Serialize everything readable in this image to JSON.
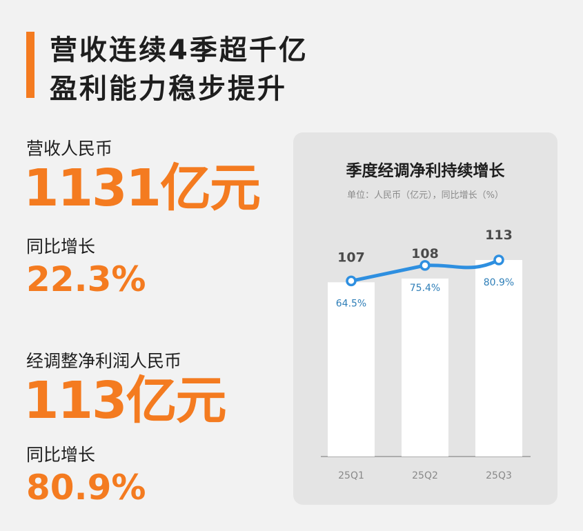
{
  "headline": {
    "line1": "营收连续4季超千亿",
    "line2": "盈利能力稳步提升"
  },
  "revenue": {
    "label": "营收人民币",
    "value": "1131亿元",
    "growth_label": "同比增长",
    "growth": "22.3%"
  },
  "profit": {
    "label": "经调整净利润人民币",
    "value": "113亿元",
    "growth_label": "同比增长",
    "growth": "80.9%"
  },
  "colors": {
    "accent": "#f47b20",
    "line": "#2e8fe0",
    "pct_text": "#2f7fb8",
    "bar": "#ffffff"
  },
  "chart_data": {
    "type": "bar",
    "title": "季度经调净利持续增长",
    "subtitle": "单位：人民币（亿元），同比增长（%）",
    "categories": [
      "25Q1",
      "25Q2",
      "25Q3"
    ],
    "series": [
      {
        "values": [
          107,
          108,
          113
        ]
      },
      {
        "type": "line",
        "values": [
          64.5,
          75.4,
          80.9
        ]
      }
    ],
    "bar_labels": [
      "107",
      "108",
      "113"
    ],
    "line_labels": [
      "64.5%",
      "75.4%",
      "80.9%"
    ],
    "grid": false
  }
}
